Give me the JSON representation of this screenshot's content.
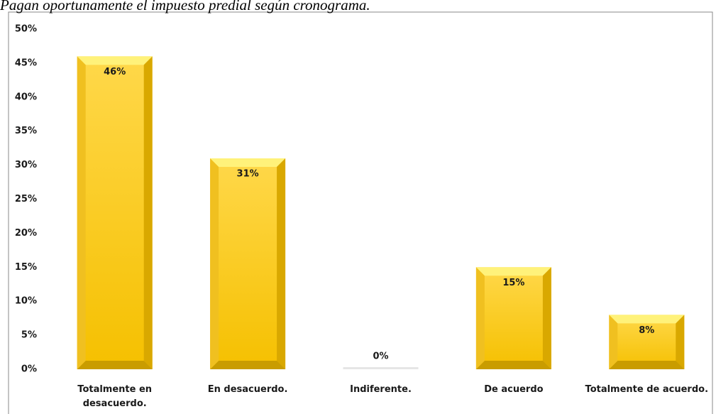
{
  "chart_data": {
    "type": "bar",
    "title": "Pagan oportunamente el impuesto predial según cronograma.",
    "categories": [
      "Totalmente en desacuerdo.",
      "En desacuerdo.",
      "Indiferente.",
      "De acuerdo",
      "Totalmente de acuerdo."
    ],
    "values": [
      46,
      31,
      0,
      15,
      8
    ],
    "value_labels": [
      "46%",
      "31%",
      "0%",
      "15%",
      "8%"
    ],
    "color": "#ffd000",
    "ylim": [
      0,
      50
    ],
    "yticks": [
      {
        "value": 0,
        "label": "0%"
      },
      {
        "value": 5,
        "label": "5%"
      },
      {
        "value": 10,
        "label": "10%"
      },
      {
        "value": 15,
        "label": "15%"
      },
      {
        "value": 20,
        "label": "20%"
      },
      {
        "value": 25,
        "label": "25%"
      },
      {
        "value": 30,
        "label": "30%"
      },
      {
        "value": 35,
        "label": "35%"
      },
      {
        "value": 40,
        "label": "40%"
      },
      {
        "value": 45,
        "label": "45%"
      },
      {
        "value": 50,
        "label": "50%"
      }
    ],
    "grid": false
  }
}
